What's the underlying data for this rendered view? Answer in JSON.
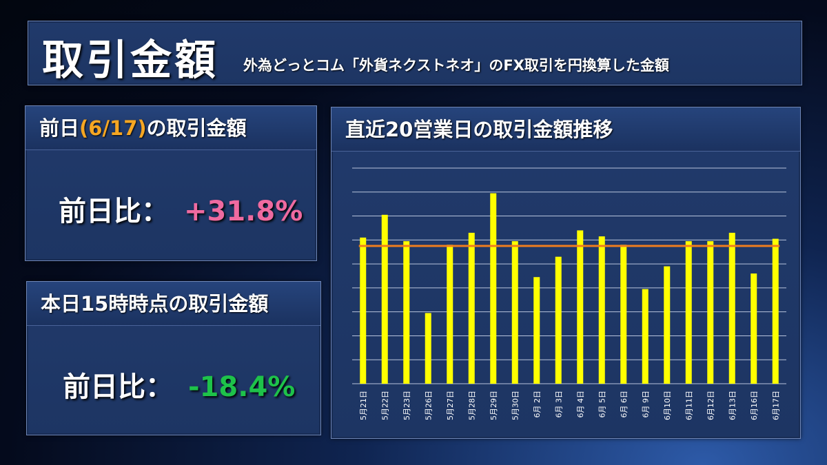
{
  "header": {
    "title": "取引金額",
    "subtitle": "外為どっとコム「外貨ネクストネオ」のFX取引を円換算した金額"
  },
  "card_prev": {
    "title_prefix": "前日",
    "title_date": "(6/17)",
    "title_suffix": "の取引金額",
    "ratio_label": "前日比：",
    "ratio_value": "+31.8%"
  },
  "card_today": {
    "title": "本日15時時点の取引金額",
    "ratio_label": "前日比：",
    "ratio_value": "-18.4%"
  },
  "chart_panel": {
    "title": "直近20営業日の取引金額推移"
  },
  "colors": {
    "bar": "#ffff00",
    "average_line": "#f07d1e",
    "positive": "#ef6aa0",
    "negative": "#1ec24a",
    "date_highlight": "#f5a623"
  },
  "chart_data": {
    "type": "bar",
    "title": "",
    "xlabel": "",
    "ylabel": "",
    "ylim": [
      0,
      9
    ],
    "y_tick_labels_shown": false,
    "grid": true,
    "categories": [
      "5月21日",
      "5月22日",
      "5月23日",
      "5月26日",
      "5月27日",
      "5月28日",
      "5月29日",
      "5月30日",
      "6月 2日",
      "6月 3日",
      "6月 4日",
      "6月 5日",
      "6月 6日",
      "6月 9日",
      "6月10日",
      "6月11日",
      "6月12日",
      "6月13日",
      "6月16日",
      "6月17日"
    ],
    "values": [
      6.1,
      7.05,
      5.95,
      2.95,
      5.8,
      6.3,
      7.95,
      5.95,
      4.45,
      5.3,
      6.4,
      6.15,
      5.8,
      3.95,
      4.9,
      5.95,
      5.95,
      6.3,
      4.6,
      6.05
    ],
    "average": 5.75
  }
}
